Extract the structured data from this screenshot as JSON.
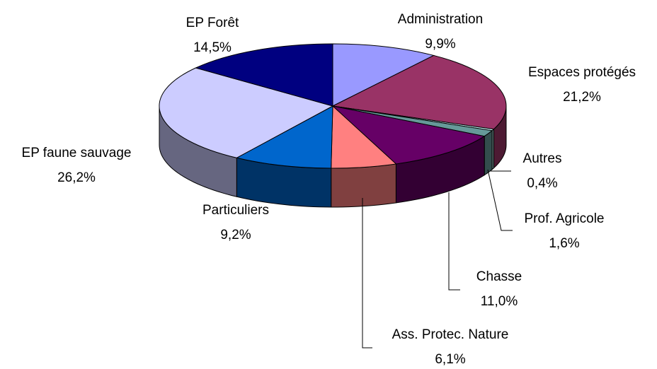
{
  "chart_data": {
    "type": "pie",
    "categories": [
      "Administration",
      "Espaces protégés",
      "Autres",
      "Prof. Agricole",
      "Chasse",
      "Ass. Protec. Nature",
      "Particuliers",
      "EP faune sauvage",
      "EP Forêt"
    ],
    "values": [
      9.9,
      21.2,
      0.4,
      1.6,
      11.0,
      6.1,
      9.2,
      26.2,
      14.5
    ],
    "value_labels": [
      "9,9%",
      "21,2%",
      "0,4%",
      "1,6%",
      "11,0%",
      "6,1%",
      "9,2%",
      "26,2%",
      "14,5%"
    ],
    "colors": [
      "#9999ff",
      "#993366",
      "#ccffff",
      "#669999",
      "#660066",
      "#ff8080",
      "#0066cc",
      "#ccccff",
      "#000080"
    ]
  }
}
